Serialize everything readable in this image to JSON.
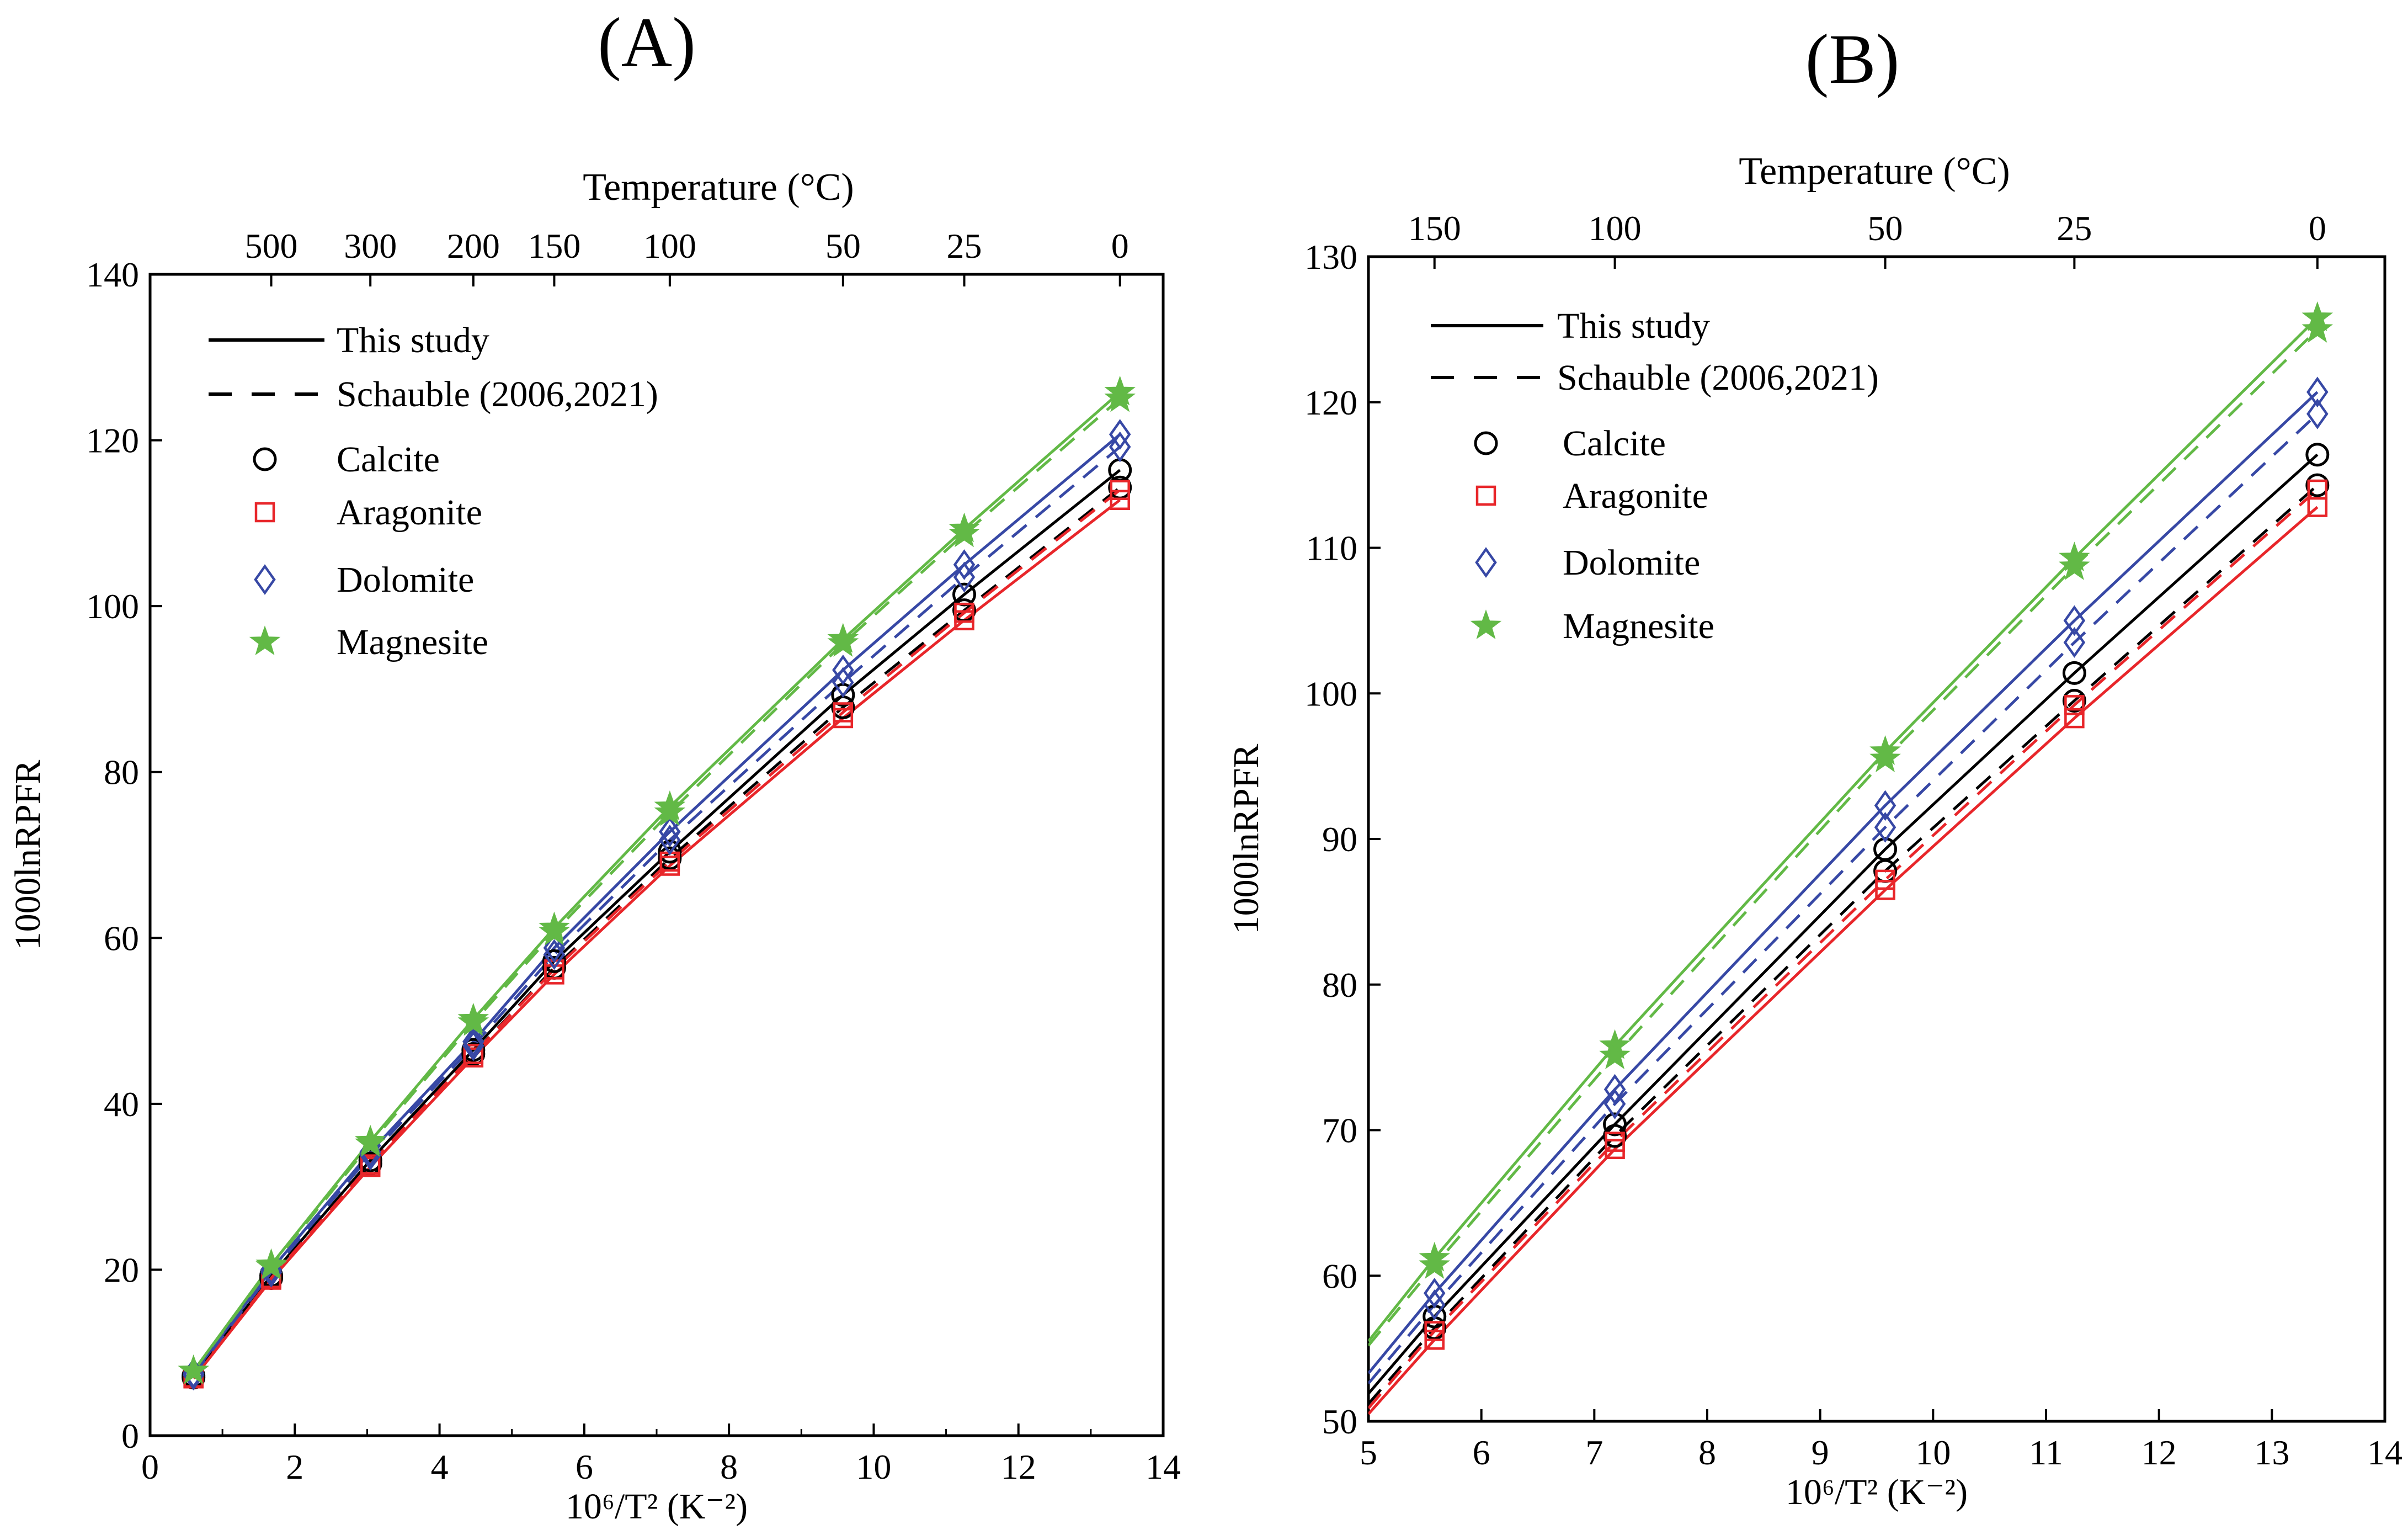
{
  "panel_labels": [
    "(A)",
    "(B)"
  ],
  "legend": {
    "line_solid": "This study",
    "line_dashed": "Schauble (2006,2021)",
    "markers": [
      "Calcite",
      "Aragonite",
      "Dolomite",
      "Magnesite"
    ]
  },
  "colors": {
    "Calcite": "#000000",
    "Aragonite": "#e8262a",
    "Dolomite": "#3748a5",
    "Magnesite": "#62b946"
  },
  "chart_data": [
    {
      "type": "line",
      "panel": "(A)",
      "xlabel": "10⁶/T² (K⁻²)",
      "ylabel": "1000lnRPFR",
      "top_axis_label": "Temperature (°C)",
      "xlim": [
        0,
        14
      ],
      "ylim": [
        0,
        140
      ],
      "x_ticks": [
        "0",
        "2",
        "4",
        "6",
        "8",
        "10",
        "12",
        "14"
      ],
      "y_ticks": [
        "0",
        "20",
        "40",
        "60",
        "80",
        "100",
        "120",
        "140"
      ],
      "top_ticks": [
        {
          "label": "500",
          "x": 1.674
        },
        {
          "label": "300",
          "x": 3.044
        },
        {
          "label": "200",
          "x": 4.467
        },
        {
          "label": "150",
          "x": 5.585
        },
        {
          "label": "100",
          "x": 7.182
        },
        {
          "label": "50",
          "x": 9.576
        },
        {
          "label": "25",
          "x": 11.251
        },
        {
          "label": "0",
          "x": 13.403
        }
      ],
      "x": [
        0.6,
        1.674,
        3.044,
        4.467,
        5.585,
        7.182,
        9.576,
        11.251,
        13.403
      ],
      "series": [
        {
          "name": "Calcite",
          "style": "solid",
          "values": [
            7.2,
            19.3,
            33.2,
            46.5,
            57.2,
            70.4,
            89.3,
            101.4,
            116.4
          ]
        },
        {
          "name": "Calcite",
          "style": "dashed",
          "values": [
            7.0,
            19.0,
            32.8,
            46.0,
            56.4,
            69.6,
            87.8,
            99.5,
            114.3
          ]
        },
        {
          "name": "Aragonite",
          "style": "solid",
          "values": [
            6.9,
            18.8,
            32.4,
            45.6,
            55.6,
            68.7,
            86.5,
            98.3,
            112.8
          ]
        },
        {
          "name": "Aragonite",
          "style": "dashed",
          "values": [
            7.0,
            19.0,
            32.7,
            46.0,
            56.2,
            69.2,
            87.2,
            99.2,
            114.0
          ]
        },
        {
          "name": "Dolomite",
          "style": "solid",
          "values": [
            7.5,
            20.0,
            34.2,
            47.5,
            58.8,
            72.8,
            92.3,
            105.0,
            120.7
          ]
        },
        {
          "name": "Dolomite",
          "style": "dashed",
          "values": [
            7.3,
            19.7,
            33.8,
            47.0,
            58.0,
            71.8,
            90.8,
            103.5,
            119.2
          ]
        },
        {
          "name": "Magnesite",
          "style": "solid",
          "values": [
            7.8,
            20.6,
            35.5,
            50.2,
            61.2,
            75.8,
            96.0,
            109.3,
            125.8
          ]
        },
        {
          "name": "Magnesite",
          "style": "dashed",
          "values": [
            7.8,
            20.4,
            35.2,
            49.8,
            60.7,
            75.1,
            95.5,
            108.7,
            125.0
          ]
        }
      ]
    },
    {
      "type": "line",
      "panel": "(B)",
      "xlabel": "10⁶/T² (K⁻²)",
      "ylabel": "1000lnRPFR",
      "top_axis_label": "Temperature (°C)",
      "xlim": [
        5,
        14
      ],
      "ylim": [
        50,
        130
      ],
      "x_ticks": [
        "5",
        "6",
        "7",
        "8",
        "9",
        "10",
        "11",
        "12",
        "13",
        "14"
      ],
      "y_ticks": [
        "50",
        "60",
        "70",
        "80",
        "90",
        "100",
        "110",
        "120",
        "130"
      ],
      "top_ticks": [
        {
          "label": "150",
          "x": 5.585
        },
        {
          "label": "100",
          "x": 7.182
        },
        {
          "label": "50",
          "x": 9.576
        },
        {
          "label": "25",
          "x": 11.251
        },
        {
          "label": "0",
          "x": 13.403
        }
      ],
      "x": [
        5.0,
        5.585,
        7.182,
        9.576,
        11.251,
        13.403
      ],
      "series": [
        {
          "name": "Calcite",
          "style": "solid",
          "values": [
            51.9,
            57.2,
            70.4,
            89.3,
            101.4,
            116.4
          ]
        },
        {
          "name": "Calcite",
          "style": "dashed",
          "values": [
            51.2,
            56.4,
            69.6,
            87.8,
            99.5,
            114.3
          ]
        },
        {
          "name": "Aragonite",
          "style": "solid",
          "values": [
            50.5,
            55.6,
            68.7,
            86.5,
            98.3,
            112.8
          ]
        },
        {
          "name": "Aragonite",
          "style": "dashed",
          "values": [
            50.9,
            56.2,
            69.2,
            87.2,
            99.2,
            114.0
          ]
        },
        {
          "name": "Dolomite",
          "style": "solid",
          "values": [
            53.3,
            58.8,
            72.8,
            92.3,
            105.0,
            120.7
          ]
        },
        {
          "name": "Dolomite",
          "style": "dashed",
          "values": [
            52.6,
            58.0,
            71.8,
            90.8,
            103.5,
            119.2
          ]
        },
        {
          "name": "Magnesite",
          "style": "solid",
          "values": [
            55.5,
            61.2,
            75.8,
            96.0,
            109.3,
            125.8
          ]
        },
        {
          "name": "Magnesite",
          "style": "dashed",
          "values": [
            55.2,
            60.7,
            75.1,
            95.5,
            108.7,
            125.0
          ]
        }
      ]
    }
  ]
}
